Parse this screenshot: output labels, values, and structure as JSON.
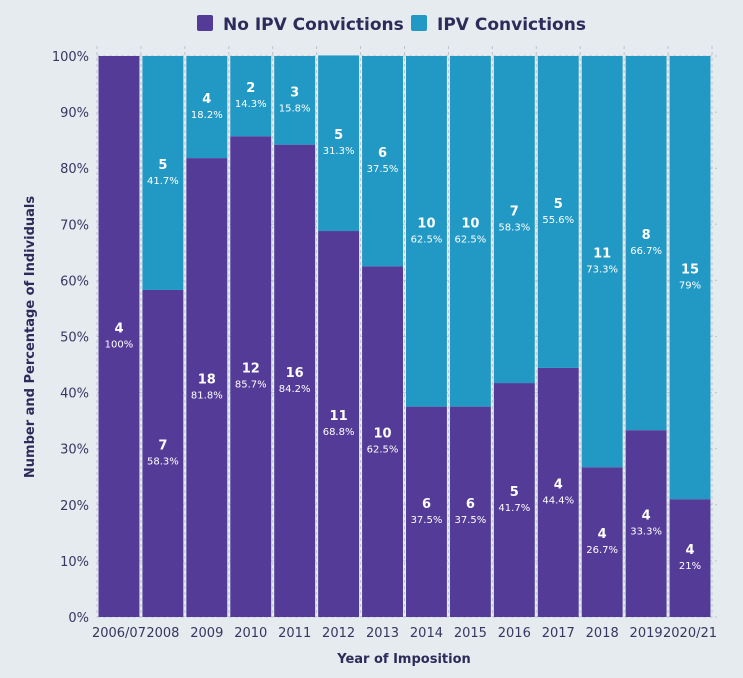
{
  "chart_data": {
    "type": "bar",
    "stacked": true,
    "xlabel": "Year of Imposition",
    "ylabel": "Number and Percentage of Individuals",
    "ylim": [
      0,
      100
    ],
    "yticks": [
      "0%",
      "10%",
      "20%",
      "30%",
      "40%",
      "50%",
      "60%",
      "70%",
      "80%",
      "90%",
      "100%"
    ],
    "categories": [
      "2006/07",
      "2008",
      "2009",
      "2010",
      "2011",
      "2012",
      "2013",
      "2014",
      "2015",
      "2016",
      "2017",
      "2018",
      "2019",
      "2020/21"
    ],
    "legend_position": "top",
    "series": [
      {
        "name": "No IPV Convictions",
        "color": "#553b98",
        "counts": [
          "4",
          "7",
          "18",
          "12",
          "16",
          "11",
          "10",
          "6",
          "6",
          "5",
          "4",
          "4",
          "4",
          "4"
        ],
        "percent_labels": [
          "100%",
          "58.3%",
          "81.8%",
          "85.7%",
          "84.2%",
          "68.8%",
          "62.5%",
          "37.5%",
          "37.5%",
          "41.7%",
          "44.4%",
          "26.7%",
          "33.3%",
          "21%"
        ],
        "values": [
          100,
          58.3,
          81.8,
          85.7,
          84.2,
          68.8,
          62.5,
          37.5,
          37.5,
          41.7,
          44.4,
          26.7,
          33.3,
          21
        ]
      },
      {
        "name": "IPV Convictions",
        "color": "#2299c4",
        "counts": [
          "",
          "5",
          "4",
          "2",
          "3",
          "5",
          "6",
          "10",
          "10",
          "7",
          "5",
          "11",
          "8",
          "15"
        ],
        "percent_labels": [
          "",
          "41.7%",
          "18.2%",
          "14.3%",
          "15.8%",
          "31.3%",
          "37.5%",
          "62.5%",
          "62.5%",
          "58.3%",
          "55.6%",
          "73.3%",
          "66.7%",
          "79%"
        ],
        "values": [
          0,
          41.7,
          18.2,
          14.3,
          15.8,
          31.3,
          37.5,
          62.5,
          62.5,
          58.3,
          55.6,
          73.3,
          66.7,
          79
        ]
      }
    ]
  }
}
